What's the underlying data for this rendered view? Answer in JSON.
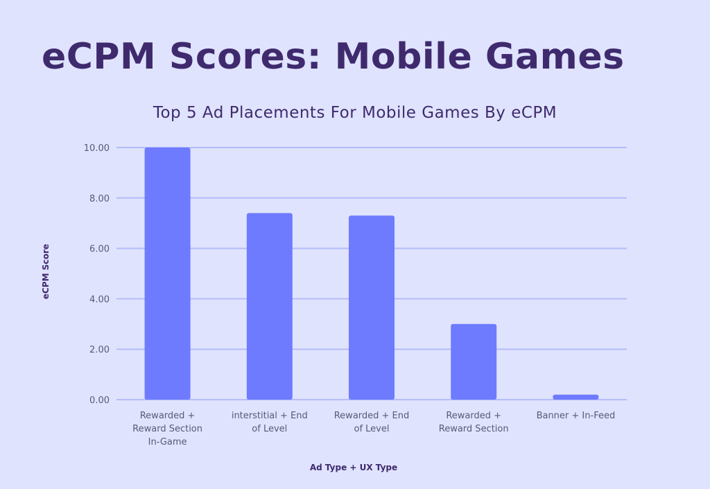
{
  "page": {
    "title": "eCPM Scores: Mobile Games"
  },
  "chart_data": {
    "type": "bar",
    "title": "Top 5 Ad Placements For Mobile Games By eCPM",
    "xlabel": "Ad Type + UX Type",
    "ylabel": "eCPM Score",
    "categories": [
      [
        "Rewarded +",
        "Reward Section",
        "In-Game"
      ],
      [
        "interstitial + End",
        "of Level"
      ],
      [
        "Rewarded + End",
        "of Level"
      ],
      [
        "Rewarded +",
        "Reward Section"
      ],
      [
        "Banner + In-Feed"
      ]
    ],
    "values": [
      10.0,
      7.4,
      7.3,
      3.0,
      0.2
    ],
    "ylim": [
      0,
      10
    ],
    "yticks": [
      "0.00",
      "2.00",
      "4.00",
      "6.00",
      "8.00",
      "10.00"
    ],
    "grid": true,
    "legend": "none",
    "colors": {
      "bar": "#6e7bff",
      "grid": "#b4bcf8",
      "text": "#3f2a6e",
      "tick": "#555a78"
    }
  }
}
